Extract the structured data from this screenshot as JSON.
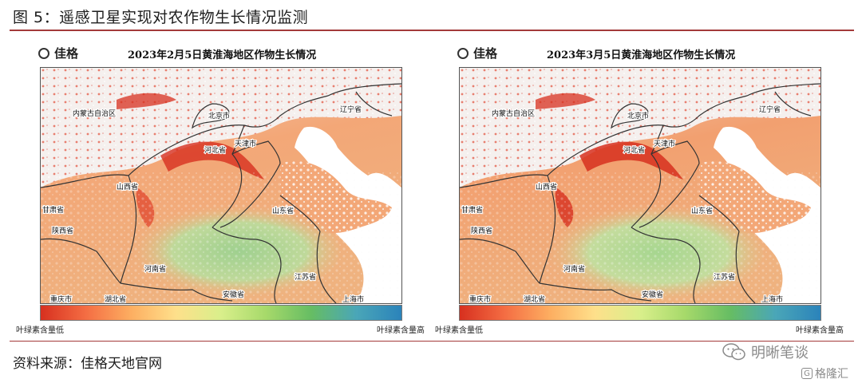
{
  "figure": {
    "title": "图 5：遥感卫星实现对农作物生长情况监测",
    "source": "资料来源：佳格天地官网"
  },
  "accent_color": "#a33a3a",
  "panels": [
    {
      "brand": "佳格",
      "title": "2023年2月5日黄淮海地区作物生长情况",
      "legend_low": "叶绿素含量低",
      "legend_high": "叶绿素含量高"
    },
    {
      "brand": "佳格",
      "title": "2023年3月5日黄淮海地区作物生长情况",
      "legend_low": "叶绿素含量低",
      "legend_high": "叶绿素含量高"
    }
  ],
  "places": {
    "nei_menggu": "内蒙古自治区",
    "liaoning": "辽宁省",
    "beijing": "北京市",
    "tianjin": "天津市",
    "hebei": "河北省",
    "shanxi": "山西省",
    "shandong": "山东省",
    "gansu": "甘肃省",
    "shaanxi": "陕西省",
    "henan": "河南省",
    "jiangsu": "江苏省",
    "anhui": "安徽省",
    "chongqing": "重庆市",
    "hubei": "湖北省",
    "shanghai": "上海市"
  },
  "colorbar_stops": [
    "#d7301f",
    "#f46d43",
    "#fdae61",
    "#fee08b",
    "#d9ef8b",
    "#a6d96a",
    "#66bd63",
    "#4aa6b8",
    "#2b83ba"
  ],
  "watermarks": {
    "wechat": "明晰笔谈",
    "gelonghui": "格隆汇",
    "wechat_icon": "wechat-icon",
    "gelonghui_icon": "g-logo-icon"
  }
}
